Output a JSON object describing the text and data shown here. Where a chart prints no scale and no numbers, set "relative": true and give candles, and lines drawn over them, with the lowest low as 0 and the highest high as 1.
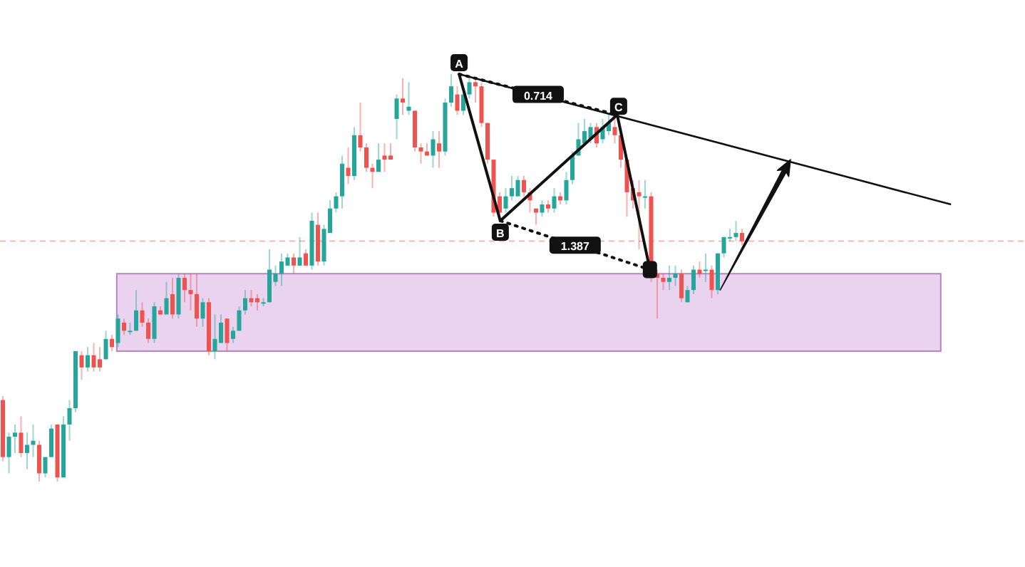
{
  "chart_data": {
    "type": "candlestick",
    "relative": true,
    "categories": [
      null,
      null,
      null,
      null,
      null,
      null,
      null,
      null,
      null,
      null,
      null,
      null,
      null,
      null,
      null,
      null,
      null,
      null,
      null,
      null,
      null,
      null,
      null,
      null,
      null,
      null,
      null,
      null,
      null,
      null,
      null,
      null,
      null,
      null,
      null,
      null,
      null,
      null,
      null,
      null,
      null,
      null,
      null,
      null,
      null,
      null,
      null,
      null,
      null,
      null,
      null,
      null,
      null,
      null,
      null,
      null,
      null,
      null,
      null,
      null,
      null,
      null,
      null,
      null,
      null,
      null,
      null,
      null,
      null,
      null,
      null,
      null,
      null,
      null,
      null,
      null,
      null,
      null,
      null,
      null,
      null,
      null,
      null,
      null,
      null,
      null,
      null,
      null,
      null,
      null,
      null,
      null,
      null,
      null,
      null,
      null,
      null,
      null,
      null,
      null,
      null,
      null,
      null,
      null,
      null,
      null,
      null,
      null,
      null,
      null,
      null,
      null,
      null,
      null,
      null,
      null,
      null,
      null,
      null,
      null,
      null,
      null,
      null
    ],
    "ohlc": [
      [
        0.2,
        0.21,
        0.05,
        0.06
      ],
      [
        0.06,
        0.12,
        0.02,
        0.11
      ],
      [
        0.11,
        0.14,
        0.07,
        0.12
      ],
      [
        0.12,
        0.16,
        0.06,
        0.07
      ],
      [
        0.07,
        0.12,
        0.03,
        0.09
      ],
      [
        0.09,
        0.14,
        0.06,
        0.1
      ],
      [
        0.09,
        0.1,
        0.0,
        0.02
      ],
      [
        0.02,
        0.06,
        0.01,
        0.06
      ],
      [
        0.06,
        0.14,
        0.06,
        0.13
      ],
      [
        0.14,
        0.14,
        0.0,
        0.01
      ],
      [
        0.01,
        0.16,
        0.01,
        0.14
      ],
      [
        0.14,
        0.2,
        0.1,
        0.18
      ],
      [
        0.18,
        0.32,
        0.17,
        0.32
      ],
      [
        0.31,
        0.32,
        0.25,
        0.28
      ],
      [
        0.28,
        0.33,
        0.27,
        0.31
      ],
      [
        0.31,
        0.34,
        0.27,
        0.28
      ],
      [
        0.3,
        0.33,
        0.27,
        0.28
      ],
      [
        0.3,
        0.37,
        0.3,
        0.35
      ],
      [
        0.35,
        0.36,
        0.32,
        0.33
      ],
      [
        0.34,
        0.41,
        0.33,
        0.4
      ],
      [
        0.39,
        0.4,
        0.36,
        0.37
      ],
      [
        0.37,
        0.39,
        0.36,
        0.37
      ],
      [
        0.37,
        0.47,
        0.37,
        0.42
      ],
      [
        0.42,
        0.44,
        0.38,
        0.39
      ],
      [
        0.39,
        0.4,
        0.34,
        0.35
      ],
      [
        0.35,
        0.44,
        0.34,
        0.43
      ],
      [
        0.42,
        0.43,
        0.41,
        0.41
      ],
      [
        0.41,
        0.49,
        0.41,
        0.45
      ],
      [
        0.46,
        0.5,
        0.4,
        0.41
      ],
      [
        0.41,
        0.51,
        0.4,
        0.5
      ],
      [
        0.5,
        0.51,
        0.44,
        0.47
      ],
      [
        0.47,
        0.51,
        0.42,
        0.46
      ],
      [
        0.46,
        0.51,
        0.38,
        0.4
      ],
      [
        0.4,
        0.45,
        0.38,
        0.44
      ],
      [
        0.44,
        0.45,
        0.31,
        0.32
      ],
      [
        0.32,
        0.41,
        0.3,
        0.35
      ],
      [
        0.34,
        0.41,
        0.34,
        0.39
      ],
      [
        0.4,
        0.4,
        0.32,
        0.34
      ],
      [
        0.35,
        0.38,
        0.34,
        0.37
      ],
      [
        0.37,
        0.43,
        0.37,
        0.42
      ],
      [
        0.42,
        0.47,
        0.41,
        0.45
      ],
      [
        0.45,
        0.47,
        0.43,
        0.44
      ],
      [
        0.45,
        0.46,
        0.42,
        0.44
      ],
      [
        0.44,
        0.45,
        0.43,
        0.44
      ],
      [
        0.44,
        0.57,
        0.44,
        0.52
      ],
      [
        0.49,
        0.53,
        0.48,
        0.51
      ],
      [
        0.51,
        0.56,
        0.48,
        0.54
      ],
      [
        0.53,
        0.56,
        0.53,
        0.55
      ],
      [
        0.55,
        0.56,
        0.51,
        0.53
      ],
      [
        0.53,
        0.6,
        0.53,
        0.55
      ],
      [
        0.56,
        0.57,
        0.53,
        0.53
      ],
      [
        0.53,
        0.66,
        0.52,
        0.64
      ],
      [
        0.63,
        0.66,
        0.53,
        0.54
      ],
      [
        0.54,
        0.63,
        0.53,
        0.62
      ],
      [
        0.61,
        0.69,
        0.61,
        0.67
      ],
      [
        0.67,
        0.71,
        0.66,
        0.7
      ],
      [
        0.7,
        0.8,
        0.67,
        0.78
      ],
      [
        0.77,
        0.82,
        0.73,
        0.75
      ],
      [
        0.75,
        0.87,
        0.74,
        0.85
      ],
      [
        0.85,
        0.93,
        0.81,
        0.82
      ],
      [
        0.82,
        0.83,
        0.76,
        0.77
      ],
      [
        0.77,
        0.78,
        0.72,
        0.76
      ],
      [
        0.76,
        0.83,
        0.76,
        0.79
      ],
      [
        0.8,
        0.83,
        0.76,
        0.79
      ],
      [
        0.8,
        0.83,
        0.79,
        0.79
      ],
      [
        0.89,
        0.95,
        0.84,
        0.94
      ],
      [
        0.94,
        0.99,
        0.9,
        0.93
      ],
      [
        0.91,
        0.98,
        0.9,
        0.92
      ],
      [
        0.91,
        0.91,
        0.81,
        0.82
      ],
      [
        0.82,
        0.83,
        0.78,
        0.81
      ],
      [
        0.81,
        0.83,
        0.8,
        0.8
      ],
      [
        0.8,
        0.86,
        0.77,
        0.84
      ],
      [
        0.83,
        0.86,
        0.77,
        0.81
      ],
      [
        0.81,
        0.94,
        0.8,
        0.93
      ],
      [
        0.93,
        1.0,
        0.92,
        0.97
      ],
      [
        0.95,
        0.97,
        0.9,
        0.91
      ],
      [
        0.91,
        0.97,
        0.9,
        0.95
      ],
      [
        0.95,
        0.99,
        0.94,
        0.98
      ],
      [
        0.98,
        0.99,
        0.93,
        0.97
      ],
      [
        0.97,
        0.98,
        0.87,
        0.88
      ],
      [
        0.88,
        0.88,
        0.78,
        0.79
      ],
      [
        0.79,
        0.79,
        0.65,
        0.66
      ],
      [
        0.7,
        0.71,
        0.65,
        0.66
      ],
      [
        0.67,
        0.72,
        0.66,
        0.7
      ],
      [
        0.7,
        0.75,
        0.69,
        0.72
      ],
      [
        0.7,
        0.75,
        0.7,
        0.74
      ],
      [
        0.74,
        0.75,
        0.7,
        0.71
      ],
      [
        0.71,
        0.72,
        0.66,
        0.69
      ],
      [
        0.67,
        0.67,
        0.63,
        0.66
      ],
      [
        0.66,
        0.69,
        0.65,
        0.68
      ],
      [
        0.68,
        0.69,
        0.66,
        0.67
      ],
      [
        0.67,
        0.72,
        0.66,
        0.7
      ],
      [
        0.7,
        0.71,
        0.68,
        0.69
      ],
      [
        0.69,
        0.76,
        0.68,
        0.74
      ],
      [
        0.74,
        0.81,
        0.73,
        0.8
      ],
      [
        0.8,
        0.88,
        0.8,
        0.84
      ],
      [
        0.83,
        0.89,
        0.83,
        0.86
      ],
      [
        0.84,
        0.88,
        0.83,
        0.87
      ],
      [
        0.87,
        0.88,
        0.82,
        0.83
      ],
      [
        0.84,
        0.89,
        0.83,
        0.87
      ],
      [
        0.86,
        0.9,
        0.85,
        0.88
      ],
      [
        0.87,
        0.89,
        0.83,
        0.85
      ],
      [
        0.85,
        0.86,
        0.77,
        0.79
      ],
      [
        0.79,
        0.79,
        0.65,
        0.71
      ],
      [
        0.72,
        0.74,
        0.67,
        0.69
      ],
      [
        0.71,
        0.74,
        0.57,
        0.7
      ],
      [
        0.7,
        0.74,
        0.67,
        0.7
      ],
      [
        0.7,
        0.71,
        0.49,
        0.5
      ],
      [
        0.51,
        0.52,
        0.4,
        0.5
      ],
      [
        0.5,
        0.51,
        0.47,
        0.49
      ],
      [
        0.49,
        0.53,
        0.47,
        0.5
      ],
      [
        0.5,
        0.53,
        0.48,
        0.51
      ],
      [
        0.51,
        0.52,
        0.44,
        0.45
      ],
      [
        0.44,
        0.48,
        0.44,
        0.47
      ],
      [
        0.47,
        0.53,
        0.46,
        0.52
      ],
      [
        0.52,
        0.54,
        0.5,
        0.51
      ],
      [
        0.52,
        0.56,
        0.49,
        0.52
      ],
      [
        0.52,
        0.53,
        0.45,
        0.47
      ],
      [
        0.47,
        0.56,
        0.46,
        0.56
      ],
      [
        0.56,
        0.6,
        0.55,
        0.6
      ],
      [
        0.6,
        0.62,
        0.59,
        0.6
      ],
      [
        0.6,
        0.64,
        0.59,
        0.61
      ],
      [
        0.61,
        0.62,
        0.58,
        0.59
      ]
    ],
    "annotations": [
      "A",
      "B",
      "C",
      "0.714",
      "1.387"
    ],
    "ref_lines": [
      {
        "axis": "y",
        "value": 0.59,
        "color": "#f7b5b5",
        "line_style": "dashed"
      }
    ]
  }
}
